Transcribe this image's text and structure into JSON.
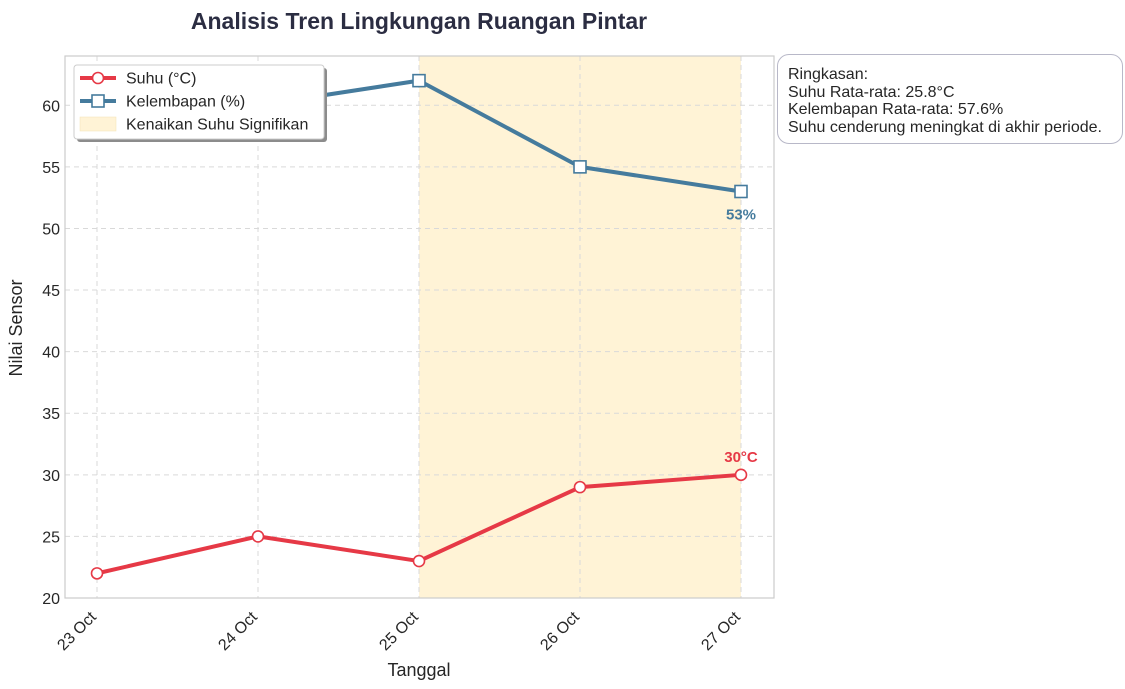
{
  "chart_data": {
    "type": "line",
    "title": "Analisis Tren Lingkungan Ruangan Pintar",
    "xlabel": "Tanggal",
    "ylabel": "Nilai Sensor",
    "categories": [
      "23 Oct",
      "24 Oct",
      "25 Oct",
      "26 Oct",
      "27 Oct"
    ],
    "ylim": [
      20,
      64
    ],
    "yticks": [
      20,
      25,
      30,
      35,
      40,
      45,
      50,
      55,
      60
    ],
    "grid": true,
    "legend_position": "top-left",
    "series": [
      {
        "name": "Suhu (°C)",
        "values": [
          22,
          25,
          23,
          29,
          30
        ],
        "color": "#e63946",
        "marker": "circle"
      },
      {
        "name": "Kelembapan (%)",
        "values": [
          58.3,
          60,
          62,
          55,
          53
        ],
        "color": "#457b9d",
        "marker": "square"
      }
    ],
    "highlight": {
      "label": "Kenaikan Suhu Signifikan",
      "from": "25 Oct",
      "to": "27 Oct",
      "color": "#fff3d6"
    },
    "annotations": [
      {
        "text": "30°C",
        "series": 0,
        "at": "27 Oct",
        "color": "#e63946"
      },
      {
        "text": "53%",
        "series": 1,
        "at": "27 Oct",
        "color": "#457b9d"
      }
    ]
  },
  "summary": {
    "heading": "Ringkasan:",
    "line1": "Suhu Rata-rata: 25.8°C",
    "line2": "Kelembapan Rata-rata: 57.6%",
    "line3": "Suhu cenderung meningkat di akhir periode."
  }
}
